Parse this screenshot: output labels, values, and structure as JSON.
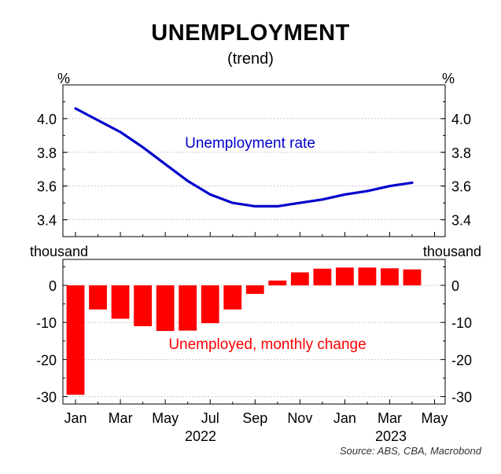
{
  "title": "UNEMPLOYMENT",
  "subtitle": "(trend)",
  "source": "Source: ABS, CBA, Macrobond",
  "colors": {
    "rate_line": "#0000cc",
    "change_bar": "#ff0000",
    "grid": "#c8c8c8"
  },
  "chart_data": [
    {
      "type": "line",
      "unit_left": "%",
      "unit_right": "%",
      "annotation": "Unemployment rate",
      "x": [
        "2022-01",
        "2022-02",
        "2022-03",
        "2022-04",
        "2022-05",
        "2022-06",
        "2022-07",
        "2022-08",
        "2022-09",
        "2022-10",
        "2022-11",
        "2022-12",
        "2023-01",
        "2023-02",
        "2023-03",
        "2023-04"
      ],
      "series": [
        {
          "values": [
            4.06,
            3.99,
            3.92,
            3.83,
            3.73,
            3.63,
            3.55,
            3.5,
            3.48,
            3.48,
            3.5,
            3.52,
            3.55,
            3.57,
            3.6,
            3.62
          ]
        }
      ],
      "ylim": [
        3.3,
        4.2
      ],
      "yticks": [
        3.4,
        3.6,
        3.8,
        4.0
      ],
      "ytick_labels": [
        "3.4",
        "3.6",
        "3.8",
        "4.0"
      ],
      "grid": true
    },
    {
      "type": "bar",
      "unit_left": "thousand",
      "unit_right": "thousand",
      "annotation": "Unemployed, monthly change",
      "x": [
        "2022-01",
        "2022-02",
        "2022-03",
        "2022-04",
        "2022-05",
        "2022-06",
        "2022-07",
        "2022-08",
        "2022-09",
        "2022-10",
        "2022-11",
        "2022-12",
        "2023-01",
        "2023-02",
        "2023-03",
        "2023-04"
      ],
      "series": [
        {
          "values": [
            -29.5,
            -6.5,
            -9,
            -11,
            -12.3,
            -12.2,
            -10.2,
            -6.5,
            -2.3,
            1.3,
            3.5,
            4.5,
            4.8,
            4.8,
            4.6,
            4.3
          ]
        }
      ],
      "ylim": [
        -32,
        7
      ],
      "yticks": [
        -30,
        -20,
        -10,
        0
      ],
      "ytick_labels": [
        "-30",
        "-20",
        "-10",
        "0"
      ],
      "grid": true,
      "xtick_labels": [
        "Jan",
        "Mar",
        "May",
        "Jul",
        "Sep",
        "Nov",
        "Jan",
        "Mar",
        "May"
      ],
      "year_labels": [
        "2022",
        "2023"
      ]
    }
  ]
}
